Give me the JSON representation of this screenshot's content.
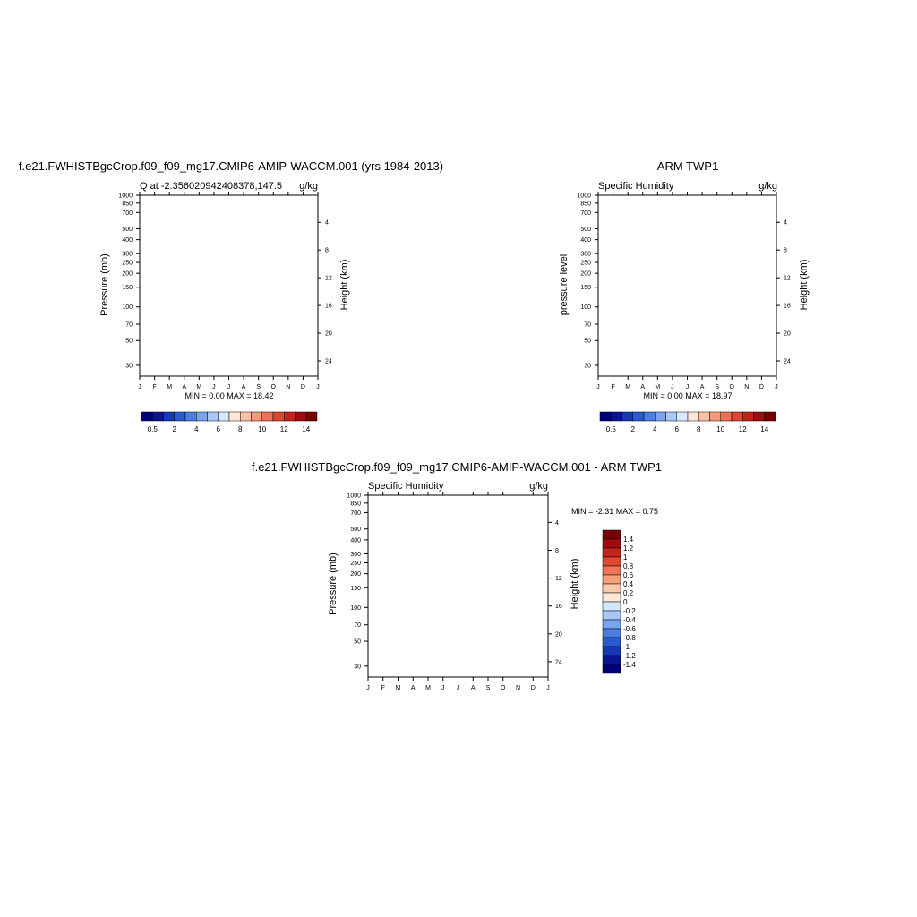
{
  "colors": {
    "seq": [
      "#000078",
      "#0a1491",
      "#1537b3",
      "#2a5ad0",
      "#4a7ee3",
      "#7aa3ee",
      "#aac8f6",
      "#d9e8fb",
      "#fde7d6",
      "#fbc1a4",
      "#f79a7c",
      "#ee6f55",
      "#de4530",
      "#c2241c",
      "#9e0d10",
      "#780000"
    ],
    "div": [
      "#000078",
      "#0a1491",
      "#1537b3",
      "#2a5ad0",
      "#4a7ee3",
      "#7aa3ee",
      "#aac8f6",
      "#d4e6fb",
      "#fde9d8",
      "#fbc9aa",
      "#f7a07e",
      "#ee7556",
      "#de4a31",
      "#c3241d",
      "#9f0d11",
      "#780000"
    ]
  },
  "chart_data": [
    {
      "type": "heatmap",
      "title": "f.e21.FWHISTBgcCrop.f09_f09_mg17.CMIP6-AMIP-WACCM.001 (yrs 1984-2013)",
      "subtitle_left": "Q at -2.356020942408378,147.5",
      "subtitle_right": "g/kg",
      "ylabel": "Pressure (mb)",
      "ylabel_right": "Height (km)",
      "x_ticks": [
        "J",
        "F",
        "M",
        "A",
        "M",
        "J",
        "J",
        "A",
        "S",
        "O",
        "N",
        "D",
        "J"
      ],
      "y_ticks": [
        "30",
        "50",
        "70",
        "100",
        "150",
        "200",
        "250",
        "300",
        "400",
        "500",
        "700",
        "850",
        "1000"
      ],
      "y_ticks_right": [
        "24",
        "20",
        "16",
        "12",
        "8",
        "4"
      ],
      "y_range_mb": [
        1000,
        24
      ],
      "minmax": "MIN =   0.00 MAX =  18.42",
      "colorbar_labels": [
        "0.5",
        "2",
        "4",
        "6",
        "8",
        "10",
        "12",
        "14"
      ],
      "min": 0.0,
      "max": 18.42
    },
    {
      "type": "heatmap",
      "title": "ARM TWP1",
      "subtitle_left": "Specific Humidity",
      "subtitle_right": "g/kg",
      "ylabel": "pressure level",
      "ylabel_right": "Height (km)",
      "x_ticks": [
        "J",
        "F",
        "M",
        "A",
        "M",
        "J",
        "J",
        "A",
        "S",
        "O",
        "N",
        "D",
        "J"
      ],
      "y_ticks": [
        "30",
        "50",
        "70",
        "100",
        "150",
        "200",
        "250",
        "300",
        "400",
        "500",
        "700",
        "850",
        "1000"
      ],
      "y_ticks_right": [
        "24",
        "20",
        "16",
        "12",
        "8",
        "4"
      ],
      "y_range_mb": [
        1000,
        24
      ],
      "minmax": "MIN =   0.00 MAX =  18.97",
      "colorbar_labels": [
        "0.5",
        "2",
        "4",
        "6",
        "8",
        "10",
        "12",
        "14"
      ],
      "min": 0.0,
      "max": 18.97
    },
    {
      "type": "heatmap",
      "title": "f.e21.FWHISTBgcCrop.f09_f09_mg17.CMIP6-AMIP-WACCM.001 - ARM TWP1",
      "subtitle_left": "Specific Humidity",
      "subtitle_right": "g/kg",
      "ylabel": "Pressure (mb)",
      "ylabel_right": "Height (km)",
      "x_ticks": [
        "J",
        "F",
        "M",
        "A",
        "M",
        "J",
        "J",
        "A",
        "S",
        "O",
        "N",
        "D",
        "J"
      ],
      "y_ticks": [
        "30",
        "50",
        "70",
        "100",
        "150",
        "200",
        "250",
        "300",
        "400",
        "500",
        "700",
        "850",
        "1000"
      ],
      "y_ticks_right": [
        "24",
        "20",
        "16",
        "12",
        "8",
        "4"
      ],
      "y_range_mb": [
        1000,
        24
      ],
      "minmax": "MIN =  -2.31 MAX =   0.75",
      "colorbar_labels": [
        "1.4",
        "1.2",
        "1",
        "0.8",
        "0.6",
        "0.4",
        "0.2",
        "0",
        "-0.2",
        "-0.4",
        "-0.6",
        "-0.8",
        "-1",
        "-1.2",
        "-1.4"
      ],
      "min": -2.31,
      "max": 0.75
    }
  ]
}
